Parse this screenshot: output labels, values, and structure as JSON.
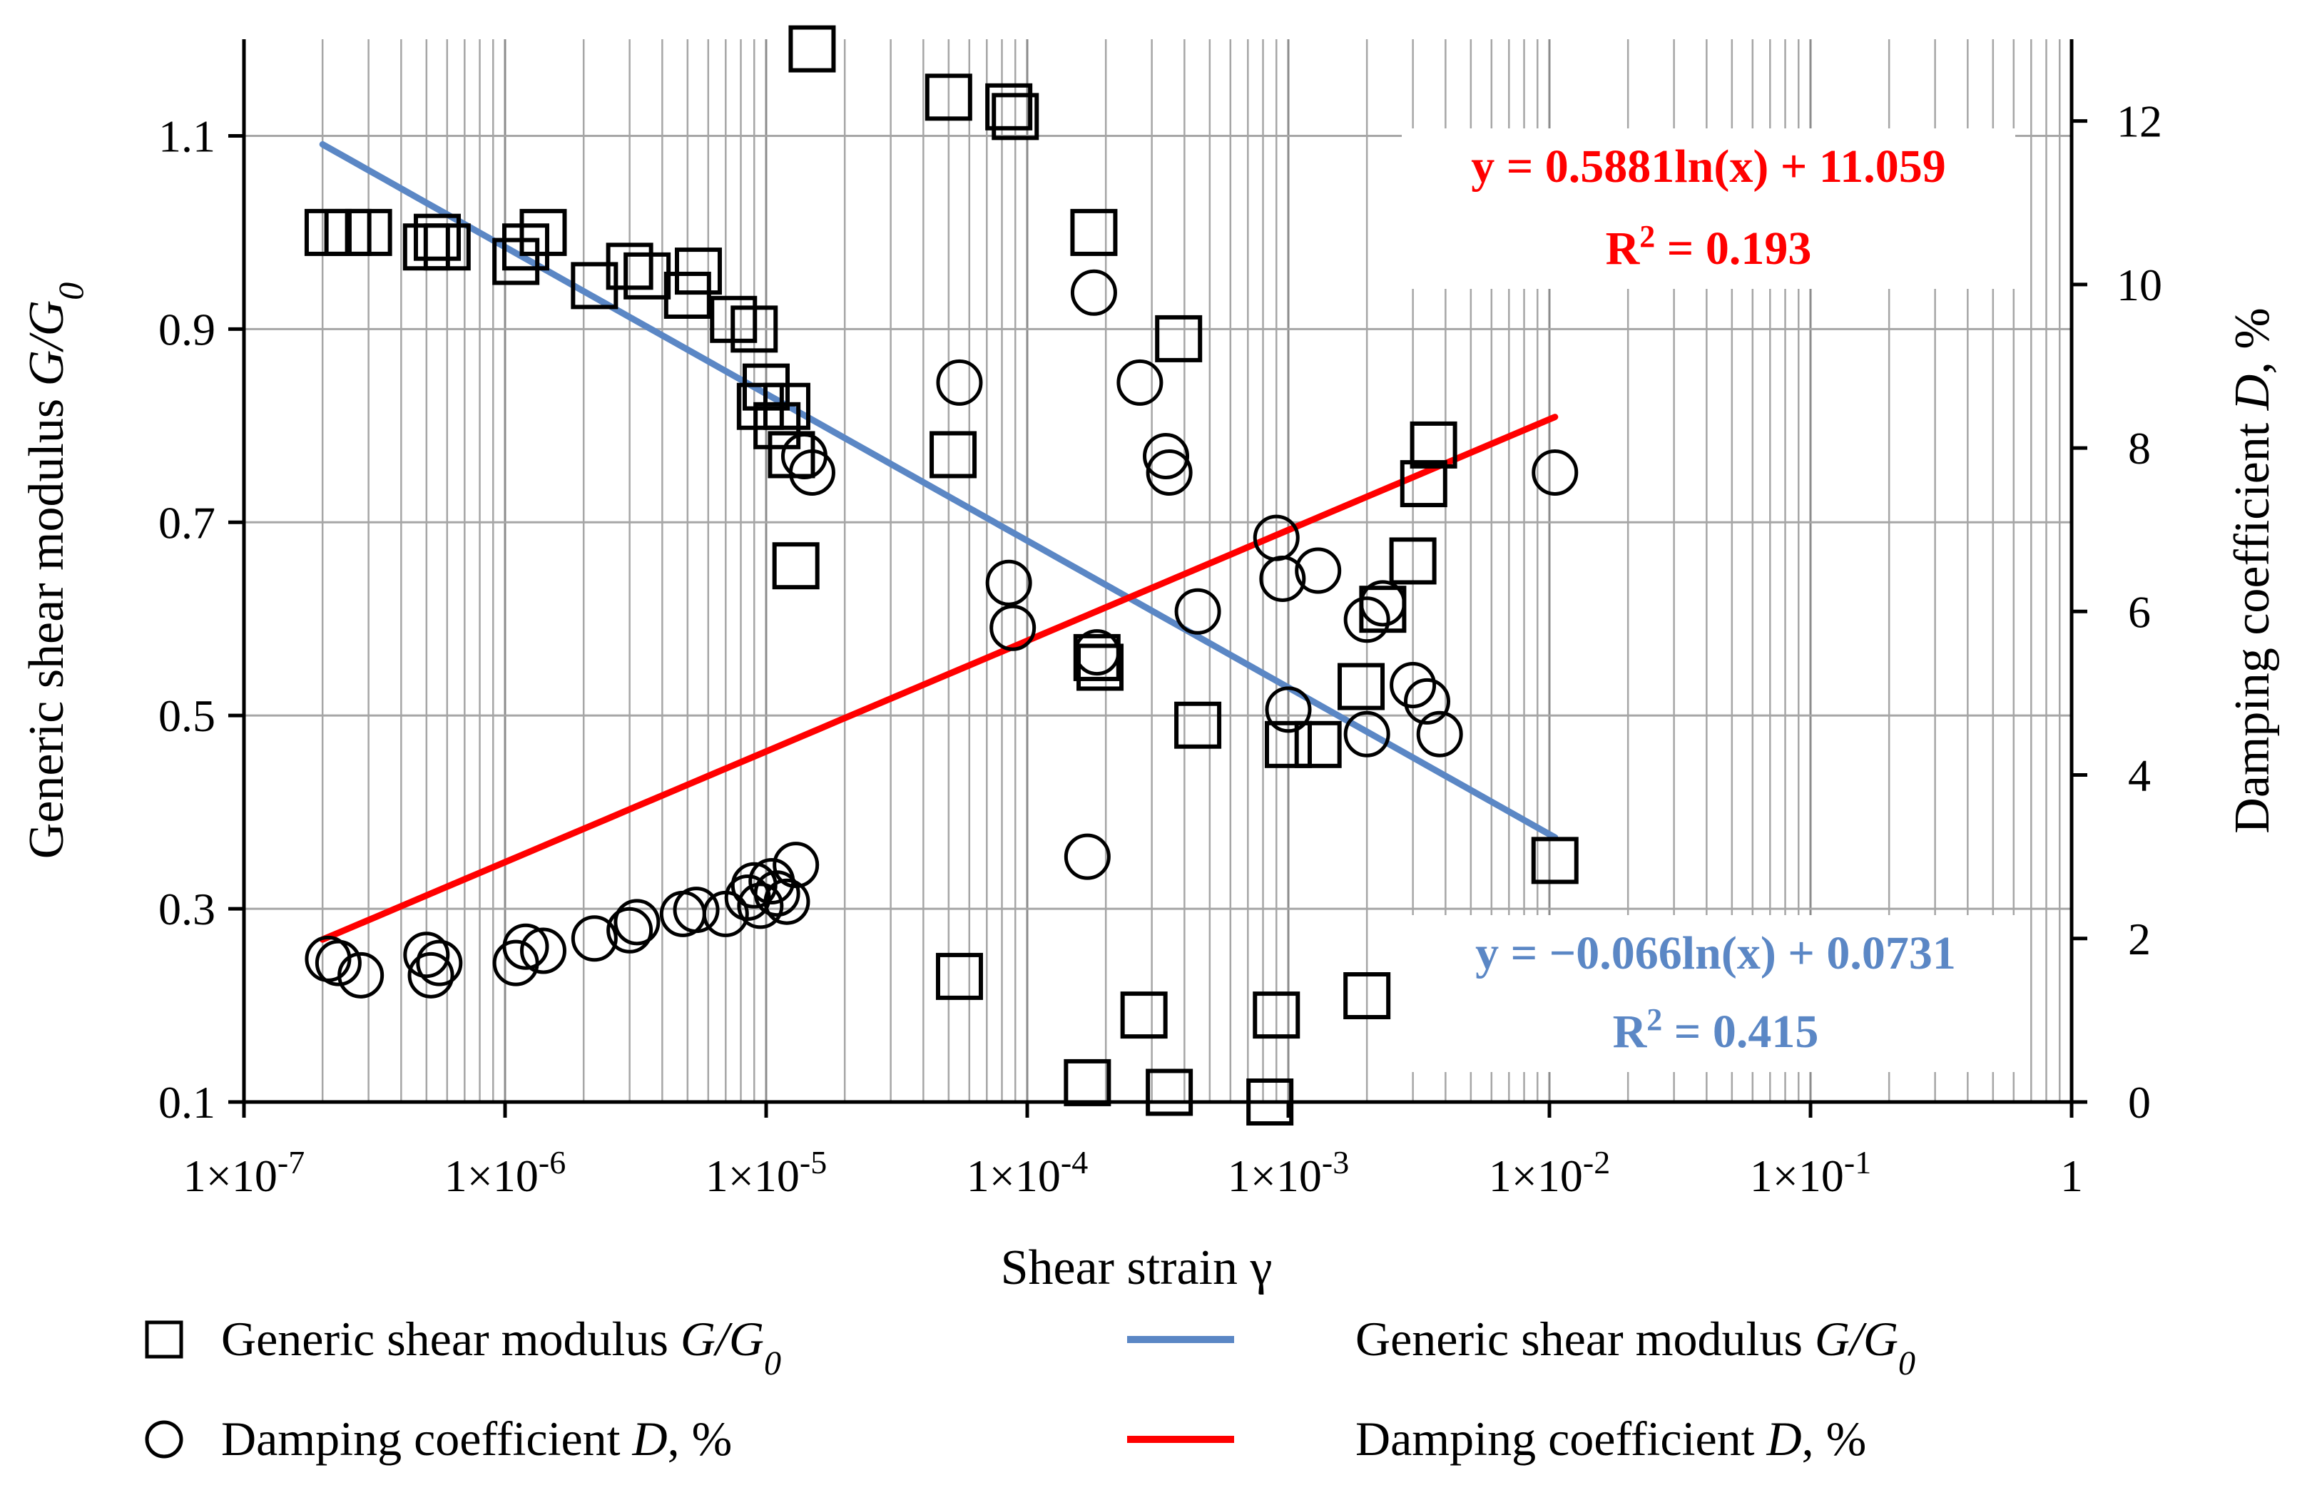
{
  "chart_data": {
    "type": "scatter",
    "xscale": "log",
    "xlim": [
      1e-07,
      1
    ],
    "ylim_left": [
      0.1,
      1.2
    ],
    "ylim_right": [
      0,
      13
    ],
    "yticks_left": [
      "0.1",
      "0.3",
      "0.5",
      "0.7",
      "0.9",
      "1.1"
    ],
    "yticks_right": [
      "0",
      "2",
      "4",
      "6",
      "8",
      "10",
      "12"
    ],
    "xtick_labels": [
      {
        "base": "1×10",
        "exp": "-7"
      },
      {
        "base": "1×10",
        "exp": "-6"
      },
      {
        "base": "1×10",
        "exp": "-5"
      },
      {
        "base": "1×10",
        "exp": "-4"
      },
      {
        "base": "1×10",
        "exp": "-3"
      },
      {
        "base": "1×10",
        "exp": "-2"
      },
      {
        "base": "1×10",
        "exp": "-1"
      },
      {
        "base": "1",
        "exp": ""
      }
    ],
    "xlabel": "Shear strain γ",
    "ylabel_left": {
      "text": "Generic shear modulus ",
      "var": "G/G",
      "sub": "0"
    },
    "ylabel_right": {
      "text": "Damping coefficient ",
      "var": "D",
      "tail": ",  %"
    },
    "series": [
      {
        "name": "Generic shear modulus G/G0",
        "marker": "square",
        "axis": "left",
        "points": [
          [
            2.1e-07,
            1.0
          ],
          [
            2.5e-07,
            1.0
          ],
          [
            3e-07,
            1.0
          ],
          [
            5e-07,
            0.985
          ],
          [
            5.5e-07,
            0.995
          ],
          [
            6e-07,
            0.985
          ],
          [
            1.1e-06,
            0.97
          ],
          [
            1.2e-06,
            0.985
          ],
          [
            1.4e-06,
            1.0
          ],
          [
            2.2e-06,
            0.945
          ],
          [
            3e-06,
            0.965
          ],
          [
            3.5e-06,
            0.955
          ],
          [
            5e-06,
            0.935
          ],
          [
            5.5e-06,
            0.96
          ],
          [
            7.5e-06,
            0.91
          ],
          [
            9e-06,
            0.9
          ],
          [
            9.5e-06,
            0.82
          ],
          [
            1e-05,
            0.84
          ],
          [
            1.1e-05,
            0.8
          ],
          [
            1.2e-05,
            0.82
          ],
          [
            1.25e-05,
            0.77
          ],
          [
            1.3e-05,
            0.655
          ],
          [
            1.5e-05,
            1.19
          ],
          [
            5e-05,
            1.14
          ],
          [
            5.2e-05,
            0.77
          ],
          [
            5.5e-05,
            0.23
          ],
          [
            8.5e-05,
            1.13
          ],
          [
            9e-05,
            1.12
          ],
          [
            0.00017,
            0.12
          ],
          [
            0.00018,
            1.0
          ],
          [
            0.00019,
            0.55
          ],
          [
            0.000185,
            0.56
          ],
          [
            0.00028,
            0.19
          ],
          [
            0.00035,
            0.11
          ],
          [
            0.00038,
            0.89
          ],
          [
            0.00045,
            0.49
          ],
          [
            0.00085,
            0.1
          ],
          [
            0.0009,
            0.19
          ],
          [
            0.001,
            0.47
          ],
          [
            0.0013,
            0.47
          ],
          [
            0.0019,
            0.53
          ],
          [
            0.002,
            0.21
          ],
          [
            0.0023,
            0.61
          ],
          [
            0.003,
            0.66
          ],
          [
            0.0033,
            0.74
          ],
          [
            0.0036,
            0.78
          ],
          [
            0.0105,
            0.35
          ]
        ]
      },
      {
        "name": "Damping coefficient D,%",
        "marker": "circle",
        "axis": "right",
        "points": [
          [
            2.1e-07,
            1.75
          ],
          [
            2.3e-07,
            1.7
          ],
          [
            2.8e-07,
            1.55
          ],
          [
            5e-07,
            1.8
          ],
          [
            5.2e-07,
            1.55
          ],
          [
            5.6e-07,
            1.7
          ],
          [
            1.1e-06,
            1.7
          ],
          [
            1.2e-06,
            1.9
          ],
          [
            1.4e-06,
            1.85
          ],
          [
            2.2e-06,
            2.0
          ],
          [
            3e-06,
            2.1
          ],
          [
            3.2e-06,
            2.2
          ],
          [
            4.8e-06,
            2.3
          ],
          [
            5.4e-06,
            2.35
          ],
          [
            7e-06,
            2.3
          ],
          [
            8.5e-06,
            2.5
          ],
          [
            9e-06,
            2.65
          ],
          [
            9.5e-06,
            2.4
          ],
          [
            1.05e-05,
            2.7
          ],
          [
            1.1e-05,
            2.55
          ],
          [
            1.2e-05,
            2.45
          ],
          [
            1.3e-05,
            2.9
          ],
          [
            1.4e-05,
            7.9
          ],
          [
            1.5e-05,
            7.7
          ],
          [
            5.5e-05,
            8.8
          ],
          [
            8.5e-05,
            6.35
          ],
          [
            8.8e-05,
            5.8
          ],
          [
            0.00017,
            3.0
          ],
          [
            0.00018,
            9.9
          ],
          [
            0.000185,
            5.5
          ],
          [
            0.00027,
            8.8
          ],
          [
            0.00034,
            7.9
          ],
          [
            0.00035,
            7.7
          ],
          [
            0.00045,
            6.0
          ],
          [
            0.0009,
            6.9
          ],
          [
            0.00095,
            6.4
          ],
          [
            0.001,
            4.8
          ],
          [
            0.0013,
            6.5
          ],
          [
            0.002,
            5.9
          ],
          [
            0.0023,
            6.1
          ],
          [
            0.002,
            4.5
          ],
          [
            0.003,
            5.1
          ],
          [
            0.0034,
            4.9
          ],
          [
            0.0038,
            4.5
          ],
          [
            0.0105,
            7.7
          ]
        ]
      },
      {
        "name": "Generic shear modulus G/G0",
        "kind": "trendline",
        "axis": "left",
        "color": "#5b87c5",
        "equation": "y = −0.066ln(x) + 0.0731",
        "r2": "R² = 0.415",
        "x_range": [
          2e-07,
          0.0105
        ],
        "coef": [
          -0.066,
          0.0731
        ]
      },
      {
        "name": "Damping coefficient D,%",
        "kind": "trendline",
        "axis": "right",
        "color": "#ff0000",
        "equation": "y = 0.5881ln(x) + 11.059",
        "r2": "R² = 0.193",
        "x_range": [
          2e-07,
          0.0105
        ],
        "coef": [
          0.5881,
          11.059
        ]
      }
    ],
    "annotations": {
      "red": {
        "eq_prefix": "y = 0.5881ln(x) + 11.059",
        "r_prefix": "R",
        "r_sup": "2",
        "r_value": " = 0.193"
      },
      "blue": {
        "eq_prefix": "y = −0.066ln(x) + 0.0731",
        "r_prefix": "R",
        "r_sup": "2",
        "r_value": " = 0.415"
      }
    },
    "legend": {
      "placement": "bottom",
      "items": [
        {
          "symbol": "square",
          "text": "Generic shear modulus ",
          "var": "G/G",
          "sub": "0"
        },
        {
          "symbol": "blue-line",
          "text": "Generic shear modulus ",
          "var": "G/G",
          "sub": "0"
        },
        {
          "symbol": "circle",
          "text": "Damping coefficient ",
          "var": "D",
          "tail": ", %"
        },
        {
          "symbol": "red-line",
          "text": "Damping coefficient ",
          "var": "D",
          "tail": ", %"
        }
      ]
    },
    "colors": {
      "blue": "#5b87c5",
      "red": "#ff0000",
      "marker": "#000000",
      "grid": "#a6a6a6"
    }
  }
}
